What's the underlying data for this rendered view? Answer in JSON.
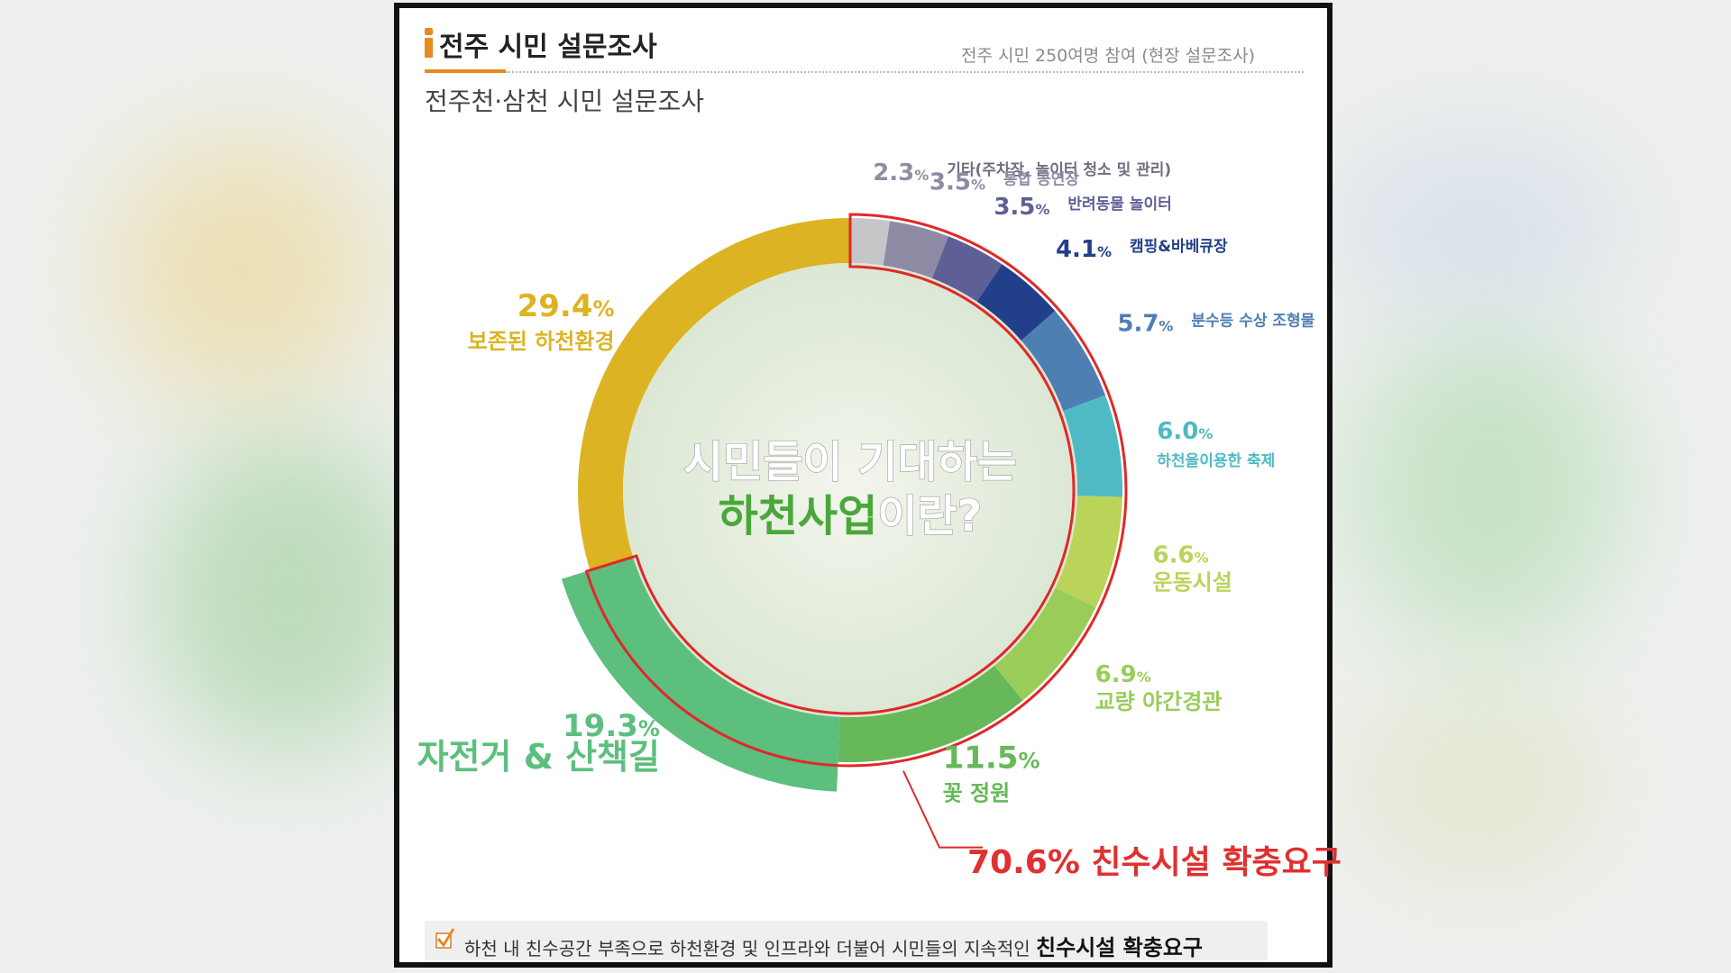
{
  "header": {
    "title": "전주 시민 설문조사",
    "source": "전주 시민 250여명 참여 (현장 설문조사)",
    "subtitle": "전주천·삼천 시민 설문조사"
  },
  "center": {
    "line1": "시민들이 기대하는",
    "line2_highlight": "하천사업",
    "line2_rest": "이란?"
  },
  "callout": {
    "text": "70.6% 친수시설 확충요구",
    "value": 70.6
  },
  "footer": {
    "text": "하천 내 친수공간 부족으로 하천환경 및 인프라와 더불어 시민들의 지속적인",
    "emphasis": "친수시설 확충요구",
    "icon": "checkmark-icon"
  },
  "colors": {
    "accent": "#e8891e",
    "highlight_ring": "#e02828",
    "callout_text": "#e03030"
  },
  "chart_data": {
    "type": "pie",
    "variant": "donut",
    "title": "시민들이 기대하는 하천사업이란?",
    "unit": "%",
    "slices": [
      {
        "label": "기타(주차장, 놀이터 청소 및 관리)",
        "value": 2.3,
        "value_text": "2.3",
        "color": "#c6c6c8"
      },
      {
        "label": "통합 공연장",
        "value": 3.5,
        "value_text": "3.5",
        "color": "#8f8aa4"
      },
      {
        "label": "반려동물 놀이터",
        "value": 3.5,
        "value_text": "3.5",
        "color": "#5f5f98"
      },
      {
        "label": "캠핑&바베큐장",
        "value": 4.1,
        "value_text": "4.1",
        "color": "#22408a"
      },
      {
        "label": "분수등 수상 조형물",
        "value": 5.7,
        "value_text": "5.7",
        "color": "#4e7fb2"
      },
      {
        "label": "하천을이용한 축제",
        "value": 6.0,
        "value_text": "6.0",
        "color": "#4fbac4"
      },
      {
        "label": "운동시설",
        "value": 6.6,
        "value_text": "6.6",
        "color": "#bad45a"
      },
      {
        "label": "교량 야간경관",
        "value": 6.9,
        "value_text": "6.9",
        "color": "#9acc5a"
      },
      {
        "label": "꽃 정원",
        "value": 11.5,
        "value_text": "11.5",
        "color": "#66b858"
      },
      {
        "label": "자전거 & 산책길",
        "value": 19.3,
        "value_text": "19.3",
        "color": "#5cbf7e"
      },
      {
        "label": "보존된 하천환경",
        "value": 29.4,
        "value_text": "29.4",
        "color": "#dcb423"
      }
    ],
    "highlighted_group": {
      "label": "친수시설 확충요구",
      "value": 70.6
    }
  }
}
